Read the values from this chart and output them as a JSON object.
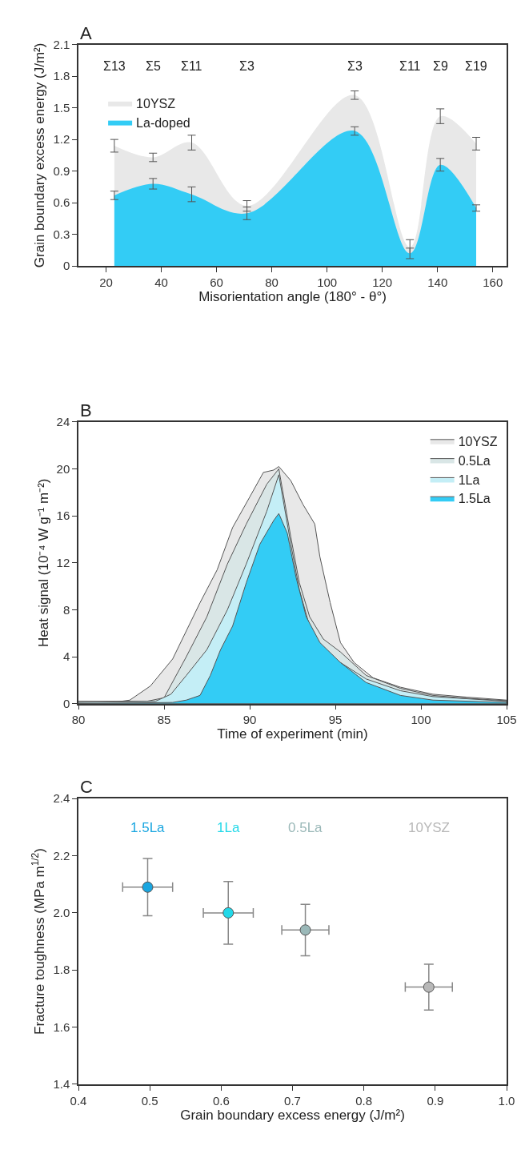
{
  "chart_data": [
    {
      "type": "area",
      "title": "A",
      "xlabel": "Misorientation angle (180° - θ°)",
      "ylabel": "Grain boundary excess energy (J/m²)",
      "xlim": [
        10,
        165
      ],
      "xticks": [
        20,
        40,
        60,
        80,
        100,
        120,
        140,
        160
      ],
      "ylim": [
        0,
        2.1
      ],
      "yticks": [
        0,
        0.3,
        0.6,
        0.9,
        1.2,
        1.5,
        1.8,
        2.1
      ],
      "x": [
        23,
        37,
        51,
        71,
        110,
        130,
        141,
        154
      ],
      "legend": "top left",
      "series": [
        {
          "name": "10YSZ",
          "color": "#e8e8e8",
          "values": [
            1.14,
            1.03,
            1.17,
            0.57,
            1.62,
            0.18,
            1.42,
            1.16
          ],
          "errors": [
            0.06,
            0.04,
            0.07,
            0.05,
            0.04,
            0.07,
            0.07,
            0.06
          ]
        },
        {
          "name": "La-doped",
          "color": "#33ccf5",
          "values": [
            0.67,
            0.78,
            0.68,
            0.5,
            1.28,
            0.12,
            0.96,
            0.55
          ],
          "errors": [
            0.04,
            0.05,
            0.07,
            0.06,
            0.04,
            0.05,
            0.06,
            0.03
          ]
        }
      ],
      "annotations": [
        "Σ13",
        "Σ5",
        "Σ11",
        "Σ3",
        "Σ3",
        "Σ11",
        "Σ9",
        "Σ19"
      ]
    },
    {
      "type": "area",
      "title": "B",
      "xlabel": "Time of experiment (min)",
      "ylabel": "Heat signal (10⁻⁴ W g⁻¹ m⁻²)",
      "xlim": [
        80,
        105
      ],
      "xticks": [
        80,
        85,
        90,
        95,
        100,
        105
      ],
      "ylim": [
        0,
        24
      ],
      "yticks": [
        0,
        4,
        8,
        12,
        16,
        20,
        24
      ],
      "legend": "top right",
      "line_style": "solid",
      "series": [
        {
          "name": "10YSZ",
          "color": "#e8e8e8",
          "x": [
            80,
            82,
            83,
            84.2,
            85.5,
            87.1,
            88.1,
            89.0,
            90.0,
            90.8,
            91.4,
            91.7,
            92.4,
            93.1,
            93.8,
            94.1,
            94.7,
            95.3,
            96.1,
            97.2,
            98.8,
            100.7,
            102.7,
            105
          ],
          "values": [
            0.2,
            0.1,
            0.3,
            1.5,
            3.8,
            8.6,
            11.4,
            15,
            17.6,
            19.7,
            19.9,
            20.2,
            19,
            17,
            15.3,
            12.5,
            8.6,
            5.2,
            3.5,
            2.2,
            1.4,
            0.8,
            0.55,
            0.3
          ]
        },
        {
          "name": "0.5La",
          "color": "#d9e6e6",
          "x": [
            80,
            84,
            85,
            86.3,
            87.5,
            88.7,
            89.8,
            91.0,
            91.7,
            92.4,
            92.9,
            93.5,
            94.3,
            95.3,
            96.8,
            98.8,
            100.7,
            102.7,
            105
          ],
          "values": [
            0.2,
            0.2,
            0.5,
            4,
            7.4,
            11.9,
            15.3,
            18.7,
            20.0,
            14.2,
            10.3,
            7.4,
            5.5,
            4.4,
            2.4,
            1.3,
            0.7,
            0.45,
            0.25
          ]
        },
        {
          "name": "1La",
          "color": "#c4eef6",
          "x": [
            80,
            84.5,
            85.4,
            86.3,
            87.5,
            88.7,
            89.8,
            91.0,
            91.7,
            92.4,
            92.9,
            93.5,
            94.3,
            95.3,
            96.8,
            98.8,
            100.7,
            105
          ],
          "values": [
            0.1,
            0.2,
            0.8,
            2.4,
            4.6,
            8,
            11.9,
            16.4,
            19.5,
            13.6,
            9.7,
            6.6,
            4.6,
            3.5,
            2.1,
            1.1,
            0.6,
            0.2
          ]
        },
        {
          "name": "1.5La",
          "color": "#33ccf5",
          "x": [
            80,
            85.5,
            86.3,
            87.1,
            87.7,
            88.3,
            89.0,
            89.8,
            90.6,
            91.4,
            91.7,
            92.2,
            92.7,
            93.3,
            94.1,
            95.3,
            96.8,
            98.8,
            100.7,
            105
          ],
          "values": [
            0,
            0.1,
            0.3,
            0.7,
            2.4,
            4.6,
            6.6,
            10.3,
            13.6,
            15.6,
            16.2,
            14.5,
            10.8,
            7.4,
            5.2,
            3.5,
            1.8,
            0.7,
            0.3,
            0.1
          ]
        }
      ]
    },
    {
      "type": "scatter",
      "title": "C",
      "xlabel": "Grain boundary excess energy (J/m²)",
      "ylabel": "Fracture toughness (MPa m$^{1/2}$)",
      "xlim": [
        0.4,
        1.0
      ],
      "xticks": [
        0.4,
        0.5,
        0.6,
        0.7,
        0.8,
        0.9,
        {
          "value": 1.0,
          "label": "1.0"
        }
      ],
      "ylim": [
        1.4,
        2.4
      ],
      "yticks": [
        1.4,
        1.6,
        1.8,
        {
          "value": 2.0,
          "label": "2.0"
        },
        2.2,
        2.4
      ],
      "legend": false,
      "marker": "circle",
      "series": [
        {
          "name": "1.5La",
          "color": "#1aa6e0",
          "x": [
            0.497
          ],
          "values": [
            2.09
          ],
          "errors": [
            [
              1.99,
              2.19
            ]
          ],
          "xerrors": [
            0.035
          ]
        },
        {
          "name": "1La",
          "color": "#22d8e8",
          "x": [
            0.61
          ],
          "values": [
            2.0
          ],
          "errors": [
            [
              1.89,
              2.11
            ]
          ],
          "xerrors": [
            0.035
          ]
        },
        {
          "name": "0.5La",
          "color": "#9ab8b8",
          "x": [
            0.718
          ],
          "values": [
            1.94
          ],
          "errors": [
            [
              1.85,
              2.03
            ]
          ],
          "xerrors": [
            0.033
          ]
        },
        {
          "name": "10YSZ",
          "color": "#b8b8b8",
          "x": [
            0.891
          ],
          "values": [
            1.74
          ],
          "errors": [
            [
              1.66,
              1.82
            ]
          ],
          "xerrors": [
            0.033
          ]
        }
      ]
    }
  ]
}
